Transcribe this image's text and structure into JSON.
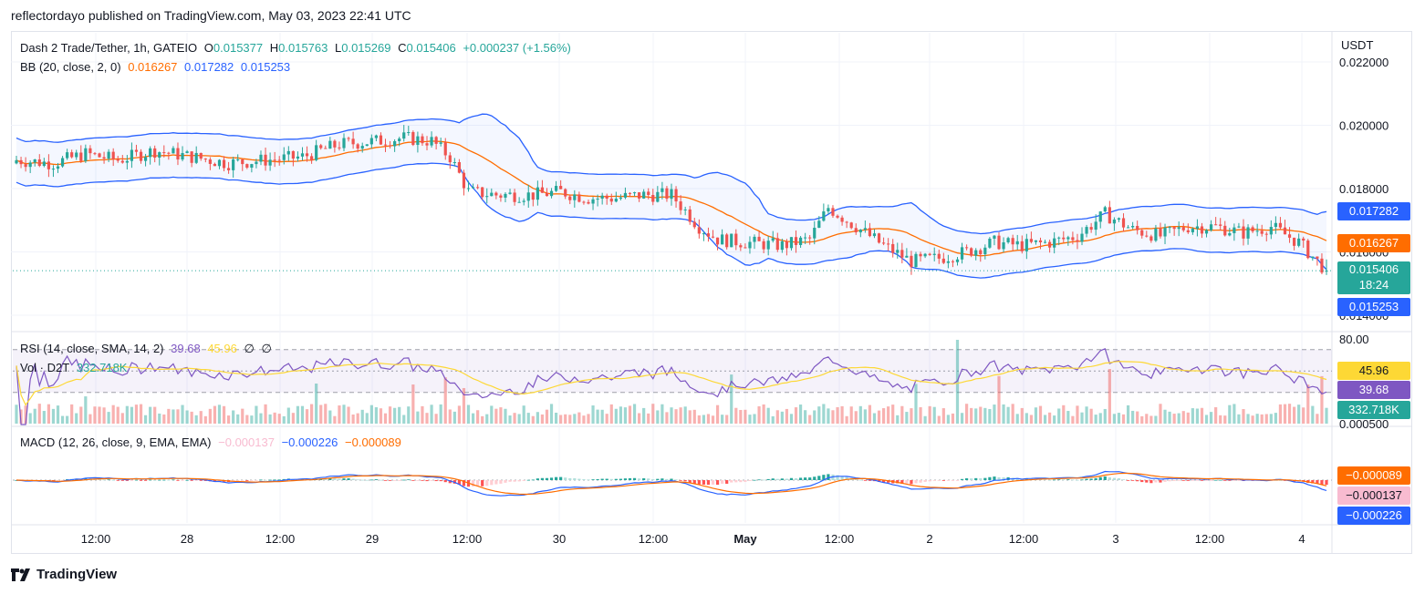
{
  "caption": "reflectordayo published on TradingView.com, May 03, 2023 22:41 UTC",
  "brand": "TradingView",
  "price_pane": {
    "symbol": "Dash 2 Trade/Tether, 1h, GATEIO",
    "o_label": "O",
    "o": "0.015377",
    "h_label": "H",
    "h": "0.015763",
    "l_label": "L",
    "l": "0.015269",
    "c_label": "C",
    "c": "0.015406",
    "change": "+0.000237 (+1.56%)",
    "bb_label": "BB (20, close, 2, 0)",
    "bb_basis": "0.016267",
    "bb_upper": "0.017282",
    "bb_lower": "0.015253",
    "currency": "USDT",
    "countdown": "18:24"
  },
  "rsi_pane": {
    "label": "RSI (14, close, SMA, 14, 2)",
    "rsi": "39.68",
    "rsi_ma": "45.96",
    "extra1": "∅",
    "extra2": "∅",
    "vol_label": "Vol · D2T",
    "vol": "332.718K"
  },
  "macd_pane": {
    "label": "MACD (12, 26, close, 9, EMA, EMA)",
    "hist": "−0.000137",
    "macd": "−0.000226",
    "signal": "−0.000089"
  },
  "colors": {
    "up": "#26a69a",
    "down": "#ef5350",
    "bb_basis": "#ff6d00",
    "bb_band": "#2962ff",
    "rsi": "#7e57c2",
    "rsi_ma": "#fdd835",
    "macd": "#2962ff",
    "signal": "#ff6d00"
  },
  "chart_data": {
    "type": "candlestick",
    "price_axis_ticks": [
      "0.022000",
      "0.020000",
      "0.018000",
      "0.016000",
      "0.014000"
    ],
    "rsi_axis_ticks": [
      "80.00"
    ],
    "vol_axis_ticks": [
      "0.000500"
    ],
    "time_labels": [
      "12:00",
      "28",
      "12:00",
      "29",
      "12:00",
      "30",
      "12:00",
      "May",
      "12:00",
      "2",
      "12:00",
      "3",
      "12:00",
      "4"
    ],
    "price_anchors": [
      [
        0,
        0.0189
      ],
      [
        8,
        0.0188
      ],
      [
        15,
        0.0191
      ],
      [
        22,
        0.0189
      ],
      [
        30,
        0.0192
      ],
      [
        38,
        0.019
      ],
      [
        46,
        0.0188
      ],
      [
        54,
        0.0189
      ],
      [
        62,
        0.019
      ],
      [
        70,
        0.0194
      ],
      [
        78,
        0.0195
      ],
      [
        84,
        0.0196
      ],
      [
        90,
        0.0195
      ],
      [
        94,
        0.019
      ],
      [
        98,
        0.0179
      ],
      [
        104,
        0.0178
      ],
      [
        112,
        0.0178
      ],
      [
        118,
        0.0179
      ],
      [
        124,
        0.0177
      ],
      [
        130,
        0.0177
      ],
      [
        136,
        0.0178
      ],
      [
        142,
        0.0178
      ],
      [
        148,
        0.0168
      ],
      [
        152,
        0.0164
      ],
      [
        158,
        0.0163
      ],
      [
        166,
        0.0162
      ],
      [
        172,
        0.0164
      ],
      [
        176,
        0.0174
      ],
      [
        182,
        0.0168
      ],
      [
        188,
        0.0162
      ],
      [
        194,
        0.0157
      ],
      [
        200,
        0.0158
      ],
      [
        206,
        0.016
      ],
      [
        212,
        0.0163
      ],
      [
        218,
        0.0162
      ],
      [
        224,
        0.0163
      ],
      [
        230,
        0.0165
      ],
      [
        236,
        0.0172
      ],
      [
        242,
        0.0167
      ],
      [
        248,
        0.0165
      ],
      [
        254,
        0.0168
      ],
      [
        260,
        0.0168
      ],
      [
        266,
        0.0166
      ],
      [
        272,
        0.0168
      ],
      [
        278,
        0.0163
      ],
      [
        284,
        0.0154
      ]
    ]
  }
}
